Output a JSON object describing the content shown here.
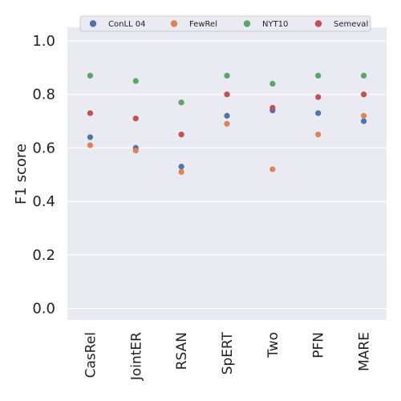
{
  "chart_data": {
    "type": "scatter",
    "title": "",
    "xlabel": "",
    "ylabel": "F1 score",
    "ylim": [
      -0.05,
      1.05
    ],
    "y_ticks": [
      "0.0",
      "0.2",
      "0.4",
      "0.6",
      "0.8",
      "1.0"
    ],
    "categories": [
      "CasRel",
      "JointER",
      "RSAN",
      "SpERT",
      "Two",
      "PFN",
      "MARE"
    ],
    "grid": true,
    "legend_position": "top",
    "background": "#eaeaf2",
    "series": [
      {
        "name": "ConLL 04",
        "color": "#4c72b0",
        "values": [
          0.64,
          0.6,
          0.53,
          0.72,
          0.74,
          0.73,
          0.7
        ]
      },
      {
        "name": "FewRel",
        "color": "#dd8452",
        "values": [
          0.61,
          0.59,
          0.51,
          0.69,
          0.52,
          0.65,
          0.72
        ]
      },
      {
        "name": "NYT10",
        "color": "#55a868",
        "values": [
          0.87,
          0.85,
          0.77,
          0.87,
          0.84,
          0.87,
          0.87
        ]
      },
      {
        "name": "Semeval",
        "color": "#c44e52",
        "values": [
          0.73,
          0.71,
          0.65,
          0.8,
          0.75,
          0.79,
          0.8
        ]
      }
    ]
  }
}
